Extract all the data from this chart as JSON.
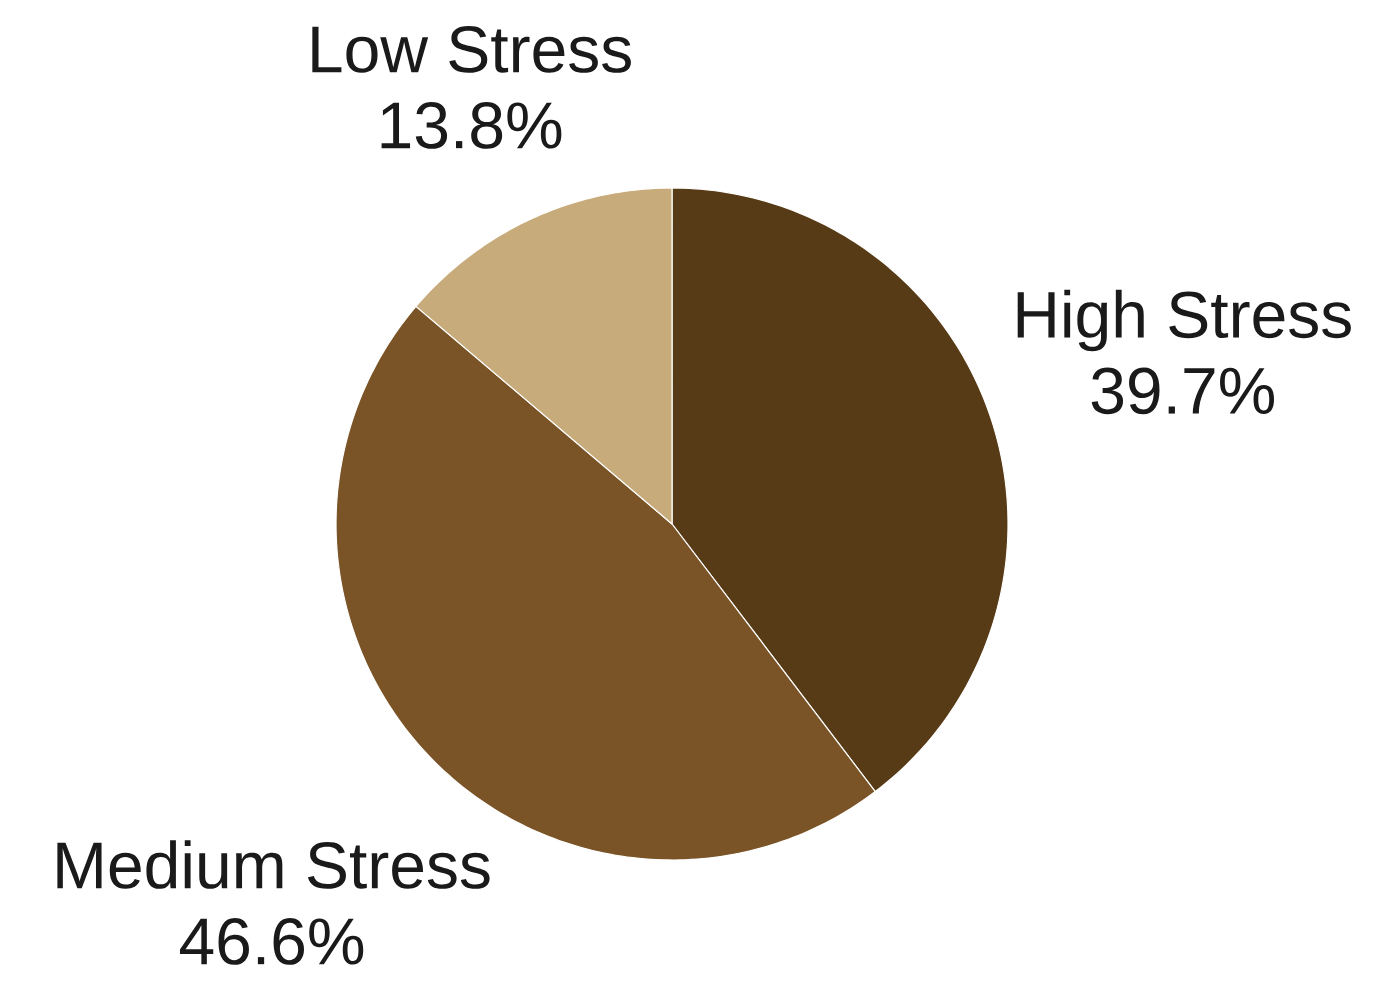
{
  "chart_data": {
    "type": "pie",
    "categories": [
      "High Stress",
      "Medium Stress",
      "Low Stress"
    ],
    "values": [
      39.7,
      46.6,
      13.8
    ],
    "value_labels": [
      "39.7%",
      "46.6%",
      "13.8%"
    ],
    "colors": [
      "#573a16",
      "#7a5427",
      "#c8ab7b"
    ]
  }
}
